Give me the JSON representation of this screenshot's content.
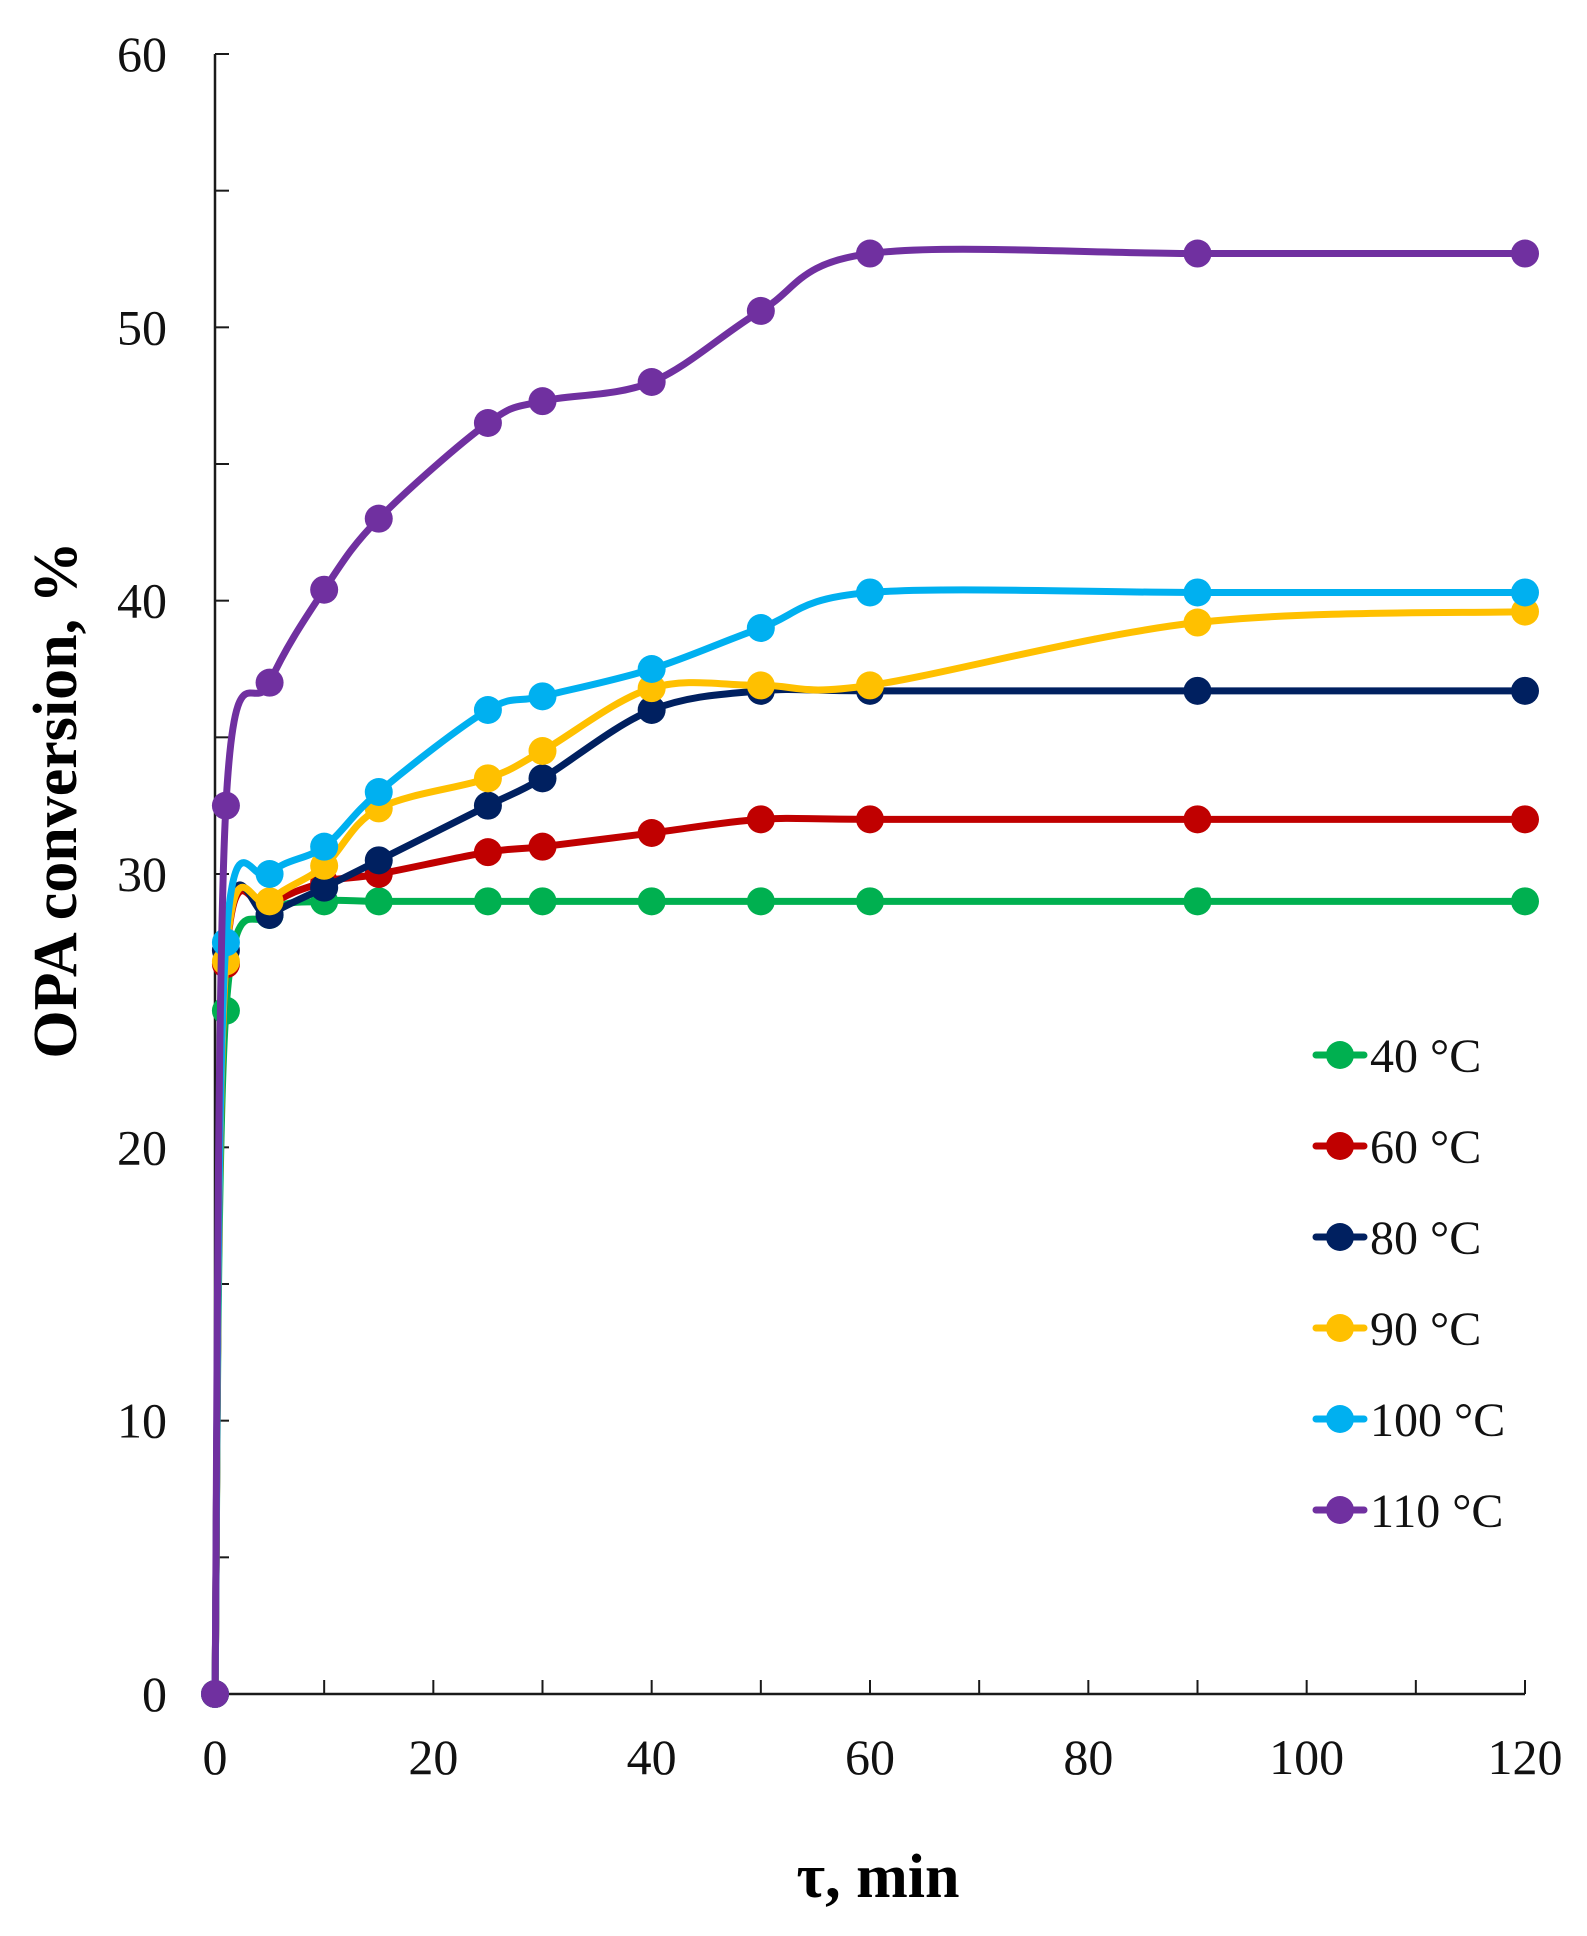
{
  "chart_data": {
    "type": "line",
    "title": "",
    "xlabel": "τ, min",
    "ylabel": "OPA conversion, %",
    "xlim": [
      0,
      120
    ],
    "ylim": [
      0,
      60
    ],
    "xticks": [
      0,
      20,
      40,
      60,
      80,
      100,
      120
    ],
    "yticks": [
      0,
      10,
      20,
      30,
      40,
      50,
      60
    ],
    "grid": false,
    "legend_position": "right",
    "series": [
      {
        "name": "40 °C",
        "color": "#00b050",
        "x": [
          0,
          1,
          5,
          10,
          15,
          25,
          30,
          40,
          50,
          60,
          90,
          120
        ],
        "y": [
          0,
          25,
          28.5,
          29,
          29,
          29,
          29,
          29,
          29,
          29,
          29,
          29
        ]
      },
      {
        "name": "60 °C",
        "color": "#c00000",
        "x": [
          0,
          1,
          5,
          10,
          15,
          25,
          30,
          40,
          50,
          60,
          90,
          120
        ],
        "y": [
          0,
          26.7,
          28.8,
          29.7,
          30,
          30.8,
          31,
          31.5,
          32,
          32,
          32,
          32
        ]
      },
      {
        "name": "80 °C",
        "color": "#002060",
        "x": [
          0,
          1,
          5,
          10,
          15,
          25,
          30,
          40,
          50,
          60,
          90,
          120
        ],
        "y": [
          0,
          27.2,
          28.5,
          29.5,
          30.5,
          32.5,
          33.5,
          36,
          36.7,
          36.7,
          36.7,
          36.7
        ]
      },
      {
        "name": "90 °C",
        "color": "#ffc000",
        "x": [
          0,
          1,
          5,
          10,
          15,
          25,
          30,
          40,
          50,
          60,
          90,
          120
        ],
        "y": [
          0,
          26.8,
          29,
          30.3,
          32.4,
          33.5,
          34.5,
          36.8,
          36.9,
          36.9,
          39.2,
          39.6
        ]
      },
      {
        "name": "100 °C",
        "color": "#00b0f0",
        "x": [
          0,
          1,
          5,
          10,
          15,
          25,
          30,
          40,
          50,
          60,
          90,
          120
        ],
        "y": [
          0,
          27.5,
          30,
          31,
          33,
          36,
          36.5,
          37.5,
          39,
          40.3,
          40.3,
          40.3
        ]
      },
      {
        "name": "110 °C",
        "color": "#7030a0",
        "x": [
          0,
          1,
          5,
          10,
          15,
          25,
          30,
          40,
          50,
          60,
          90,
          120
        ],
        "y": [
          0,
          32.5,
          37,
          40.4,
          43,
          46.5,
          47.3,
          48,
          50.6,
          52.7,
          52.7,
          52.7
        ]
      }
    ]
  }
}
